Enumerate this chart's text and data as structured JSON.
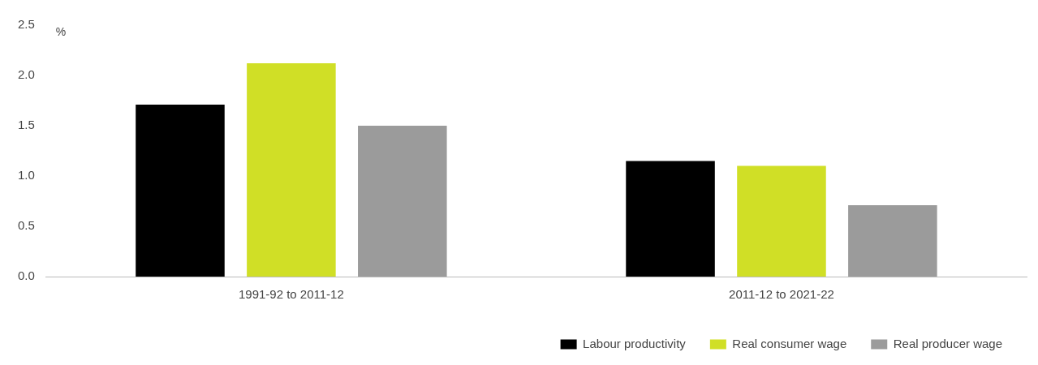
{
  "chart_data": {
    "type": "bar",
    "ylabel": "%",
    "categories": [
      "1991-92 to 2011-12",
      "2011-12 to 2021-22"
    ],
    "series": [
      {
        "name": "Labour productivity",
        "color": "#000000",
        "values": [
          1.71,
          1.15
        ]
      },
      {
        "name": "Real consumer wage",
        "color": "#d0df26",
        "values": [
          2.12,
          1.1
        ]
      },
      {
        "name": "Real producer wage",
        "color": "#9b9b9b",
        "values": [
          1.5,
          0.71
        ]
      }
    ],
    "ylim": [
      0,
      2.5
    ],
    "yticks": [
      {
        "value": 0,
        "label": "0.0"
      },
      {
        "value": 0.5,
        "label": "0.5"
      },
      {
        "value": 1,
        "label": "1.0"
      },
      {
        "value": 1.5,
        "label": "1.5"
      },
      {
        "value": 2,
        "label": "2.0"
      },
      {
        "value": 2.5,
        "label": "2.5"
      }
    ],
    "grid": false,
    "legend": "bottom right"
  }
}
